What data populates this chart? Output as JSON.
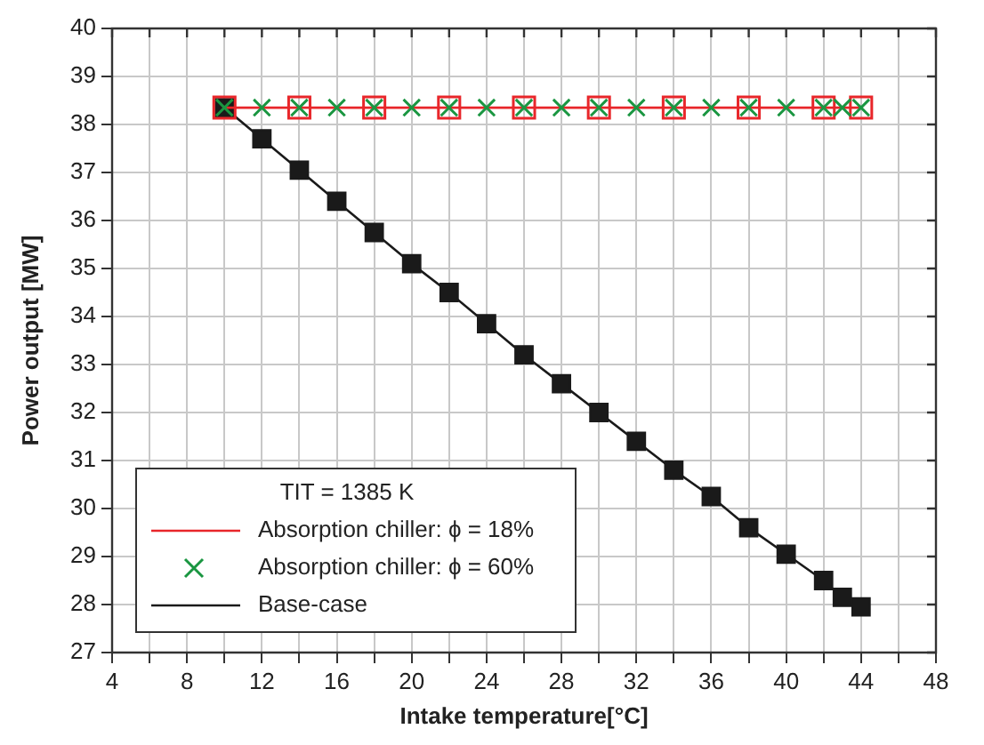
{
  "chart_data": {
    "type": "line",
    "xlabel": "Intake temperature[°C]",
    "ylabel": "Power output [MW]",
    "legend_title": "TIT = 1385 K",
    "legend": "bottom left",
    "grid": true,
    "xlim": [
      4,
      48
    ],
    "xticks": [
      4,
      {
        "value": 6,
        "label": null
      },
      8,
      {
        "value": 10,
        "label": null
      },
      12,
      {
        "value": 14,
        "label": null
      },
      16,
      {
        "value": 18,
        "label": null
      },
      20,
      {
        "value": 22,
        "label": null
      },
      24,
      {
        "value": 26,
        "label": null
      },
      28,
      {
        "value": 30,
        "label": null
      },
      32,
      {
        "value": 34,
        "label": null
      },
      36,
      {
        "value": 38,
        "label": null
      },
      40,
      {
        "value": 42,
        "label": null
      },
      44,
      {
        "value": 46,
        "label": null
      },
      48
    ],
    "ylim": [
      27,
      40
    ],
    "yticks": [
      27,
      28,
      29,
      30,
      31,
      32,
      33,
      34,
      35,
      36,
      37,
      38,
      39,
      40
    ],
    "series": [
      {
        "name": "Absorption chiller: ϕ = 18%",
        "type": "line",
        "color": "#e8262a",
        "marker": "square",
        "line_style": "solid",
        "x": [
          10,
          14,
          18,
          22,
          26,
          30,
          34,
          38,
          42,
          44
        ],
        "values": [
          38.35,
          38.35,
          38.35,
          38.35,
          38.35,
          38.35,
          38.35,
          38.35,
          38.35,
          38.35
        ]
      },
      {
        "name": "Absorption chiller: ϕ = 60%",
        "type": "scatter",
        "color": "#1a9641",
        "marker": "cross",
        "x": [
          10,
          12,
          14,
          16,
          18,
          20,
          22,
          24,
          26,
          28,
          30,
          32,
          34,
          36,
          38,
          40,
          42,
          43,
          44
        ],
        "values": [
          38.35,
          38.35,
          38.35,
          38.35,
          38.35,
          38.35,
          38.35,
          38.35,
          38.35,
          38.35,
          38.35,
          38.35,
          38.35,
          38.35,
          38.35,
          38.35,
          38.35,
          38.35,
          38.35
        ]
      },
      {
        "name": "Base-case",
        "type": "line",
        "color": "#1a1a1a",
        "marker": "square",
        "line_style": "solid",
        "x": [
          10,
          12,
          14,
          16,
          18,
          20,
          22,
          24,
          26,
          28,
          30,
          32,
          34,
          36,
          38,
          40,
          42,
          43,
          44
        ],
        "values": [
          38.35,
          37.7,
          37.05,
          36.4,
          35.75,
          35.1,
          34.5,
          33.85,
          33.2,
          32.6,
          32.0,
          31.4,
          30.8,
          30.25,
          29.6,
          29.05,
          28.5,
          28.15,
          27.95
        ]
      }
    ]
  }
}
